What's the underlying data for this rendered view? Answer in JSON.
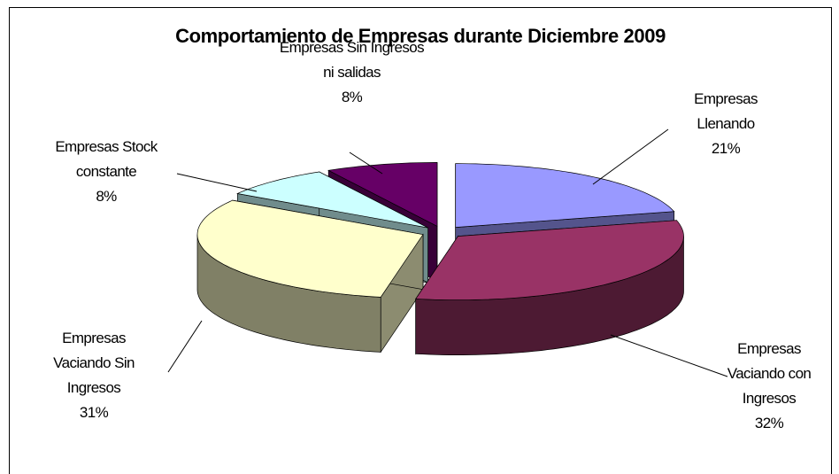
{
  "chart_data": {
    "type": "pie3d",
    "title": "Comportamiento de Empresas durante Diciembre 2009",
    "categories": [
      "Empresas Llenando",
      "Empresas Vaciando con Ingresos",
      "Empresas Vaciando Sin Ingresos",
      "Empresas Stock constante",
      "Empresas Sin Ingresos ni salidas"
    ],
    "values": [
      21,
      32,
      31,
      8,
      8
    ],
    "value_labels": [
      "21%",
      "32%",
      "31%",
      "8%",
      "8%"
    ],
    "colors": [
      "#9999ff",
      "#993366",
      "#ffffcc",
      "#ccffff",
      "#660066"
    ]
  }
}
